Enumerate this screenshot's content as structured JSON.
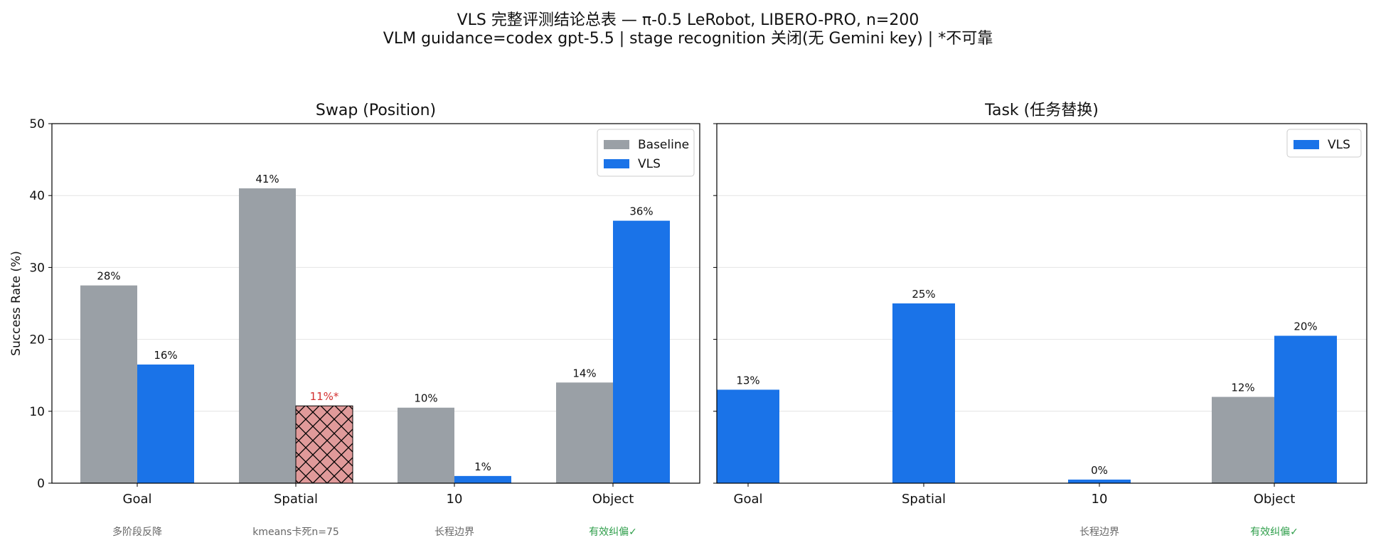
{
  "figure": {
    "title_line1": "VLS 完整评测结论总表 — π-0.5 LeRobot, LIBERO-PRO, n=200",
    "title_line2": "VLM guidance=codex gpt-5.5 | stage recognition 关闭(无 Gemini key) | *不可靠"
  },
  "colors": {
    "baseline": "#9aa0a6",
    "vls": "#1a73e8",
    "unreliable_fill": "#e09a9a",
    "unreliable_label": "#d32f2f",
    "note_gray": "#666666",
    "note_green": "#2e9e4a"
  },
  "chart_data": [
    {
      "type": "bar",
      "title": "Swap (Position)",
      "ylabel": "Success Rate (%)",
      "ylim": [
        0,
        50
      ],
      "yticks": [
        "0",
        "10",
        "20",
        "30",
        "40",
        "50"
      ],
      "grid": true,
      "legend": "top-right",
      "legend_entries": [
        "Baseline",
        "VLS"
      ],
      "categories": [
        "Goal",
        "Spatial",
        "10",
        "Object"
      ],
      "series": [
        {
          "name": "Baseline",
          "values": [
            27.5,
            41.0,
            10.5,
            14.0
          ],
          "labels": [
            "28%",
            "41%",
            "10%",
            "14%"
          ]
        },
        {
          "name": "VLS",
          "values": [
            16.5,
            10.75,
            1.0,
            36.5
          ],
          "labels": [
            "16%",
            "11%*",
            "1%",
            "36%"
          ],
          "unreliable": [
            false,
            true,
            false,
            false
          ]
        }
      ],
      "notes": [
        "多阶段反降",
        "kmeans卡死n=75",
        "长程边界",
        "有效纠偏✓"
      ],
      "note_styles": [
        "gray",
        "gray",
        "gray",
        "green"
      ]
    },
    {
      "type": "bar",
      "title": "Task (任务替换)",
      "ylabel": "",
      "ylim": [
        0,
        50
      ],
      "grid": true,
      "legend": "top-right",
      "legend_entries": [
        "VLS"
      ],
      "categories": [
        "Goal",
        "Spatial",
        "10",
        "Object"
      ],
      "series": [
        {
          "name": "Baseline",
          "values": [
            null,
            null,
            null,
            12.0
          ],
          "labels": [
            "",
            "",
            "",
            "12%"
          ]
        },
        {
          "name": "VLS",
          "values": [
            13.0,
            25.0,
            0.5,
            20.5
          ],
          "labels": [
            "13%",
            "25%",
            "0%",
            "20%"
          ]
        }
      ],
      "notes": [
        "",
        "",
        "长程边界",
        "有效纠偏✓"
      ],
      "note_styles": [
        "gray",
        "gray",
        "gray",
        "green"
      ]
    }
  ]
}
